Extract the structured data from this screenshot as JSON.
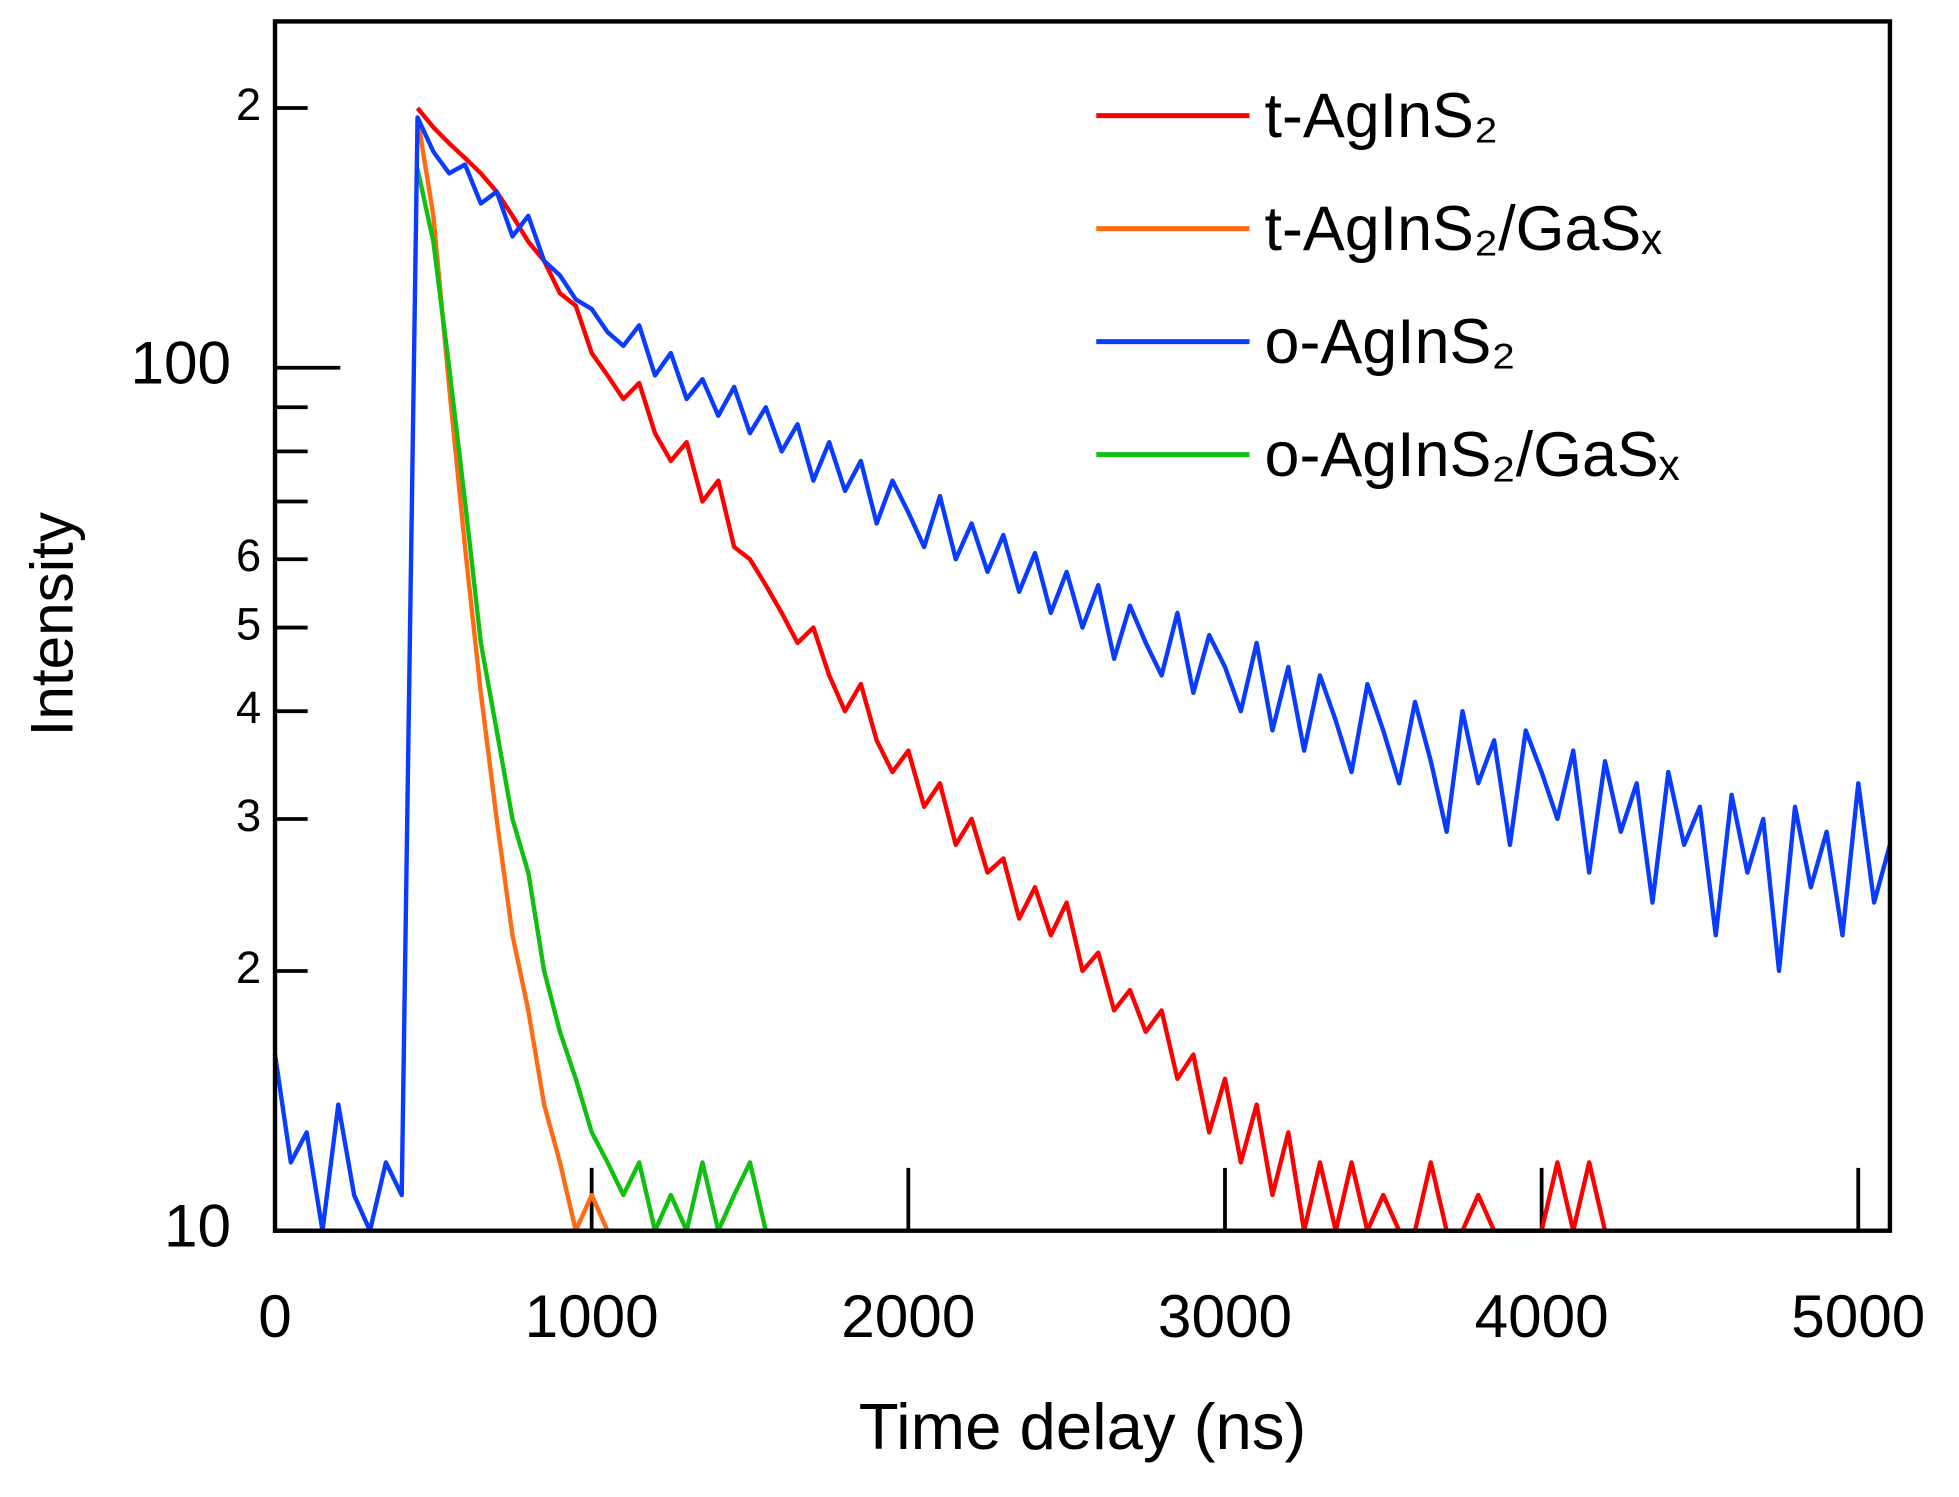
{
  "chart_data": {
    "type": "line",
    "xlabel": "Time delay (ns)",
    "ylabel": "Intensity",
    "xlim": [
      0,
      5100
    ],
    "xticks": [
      0,
      1000,
      2000,
      3000,
      4000,
      5000
    ],
    "ylim": [
      10,
      252
    ],
    "log_y": true,
    "yticks": [
      10,
      {
        "value": 20,
        "label": "2"
      },
      {
        "value": 30,
        "label": "3"
      },
      {
        "value": 40,
        "label": "4"
      },
      {
        "value": 50,
        "label": "5"
      },
      {
        "value": 60,
        "label": "6"
      },
      100,
      {
        "value": 200,
        "label": "2"
      }
    ],
    "yminor_ticks": [
      70,
      80,
      90
    ],
    "legend": "upper right",
    "x": [
      0,
      50,
      100,
      150,
      200,
      250,
      300,
      350,
      400,
      450,
      500,
      550,
      600,
      650,
      700,
      750,
      800,
      850,
      900,
      950,
      1000,
      1050,
      1100,
      1150,
      1200,
      1250,
      1300,
      1350,
      1400,
      1450,
      1500,
      1550,
      1600,
      1650,
      1700,
      1750,
      1800,
      1850,
      1900,
      1950,
      2000,
      2050,
      2100,
      2150,
      2200,
      2250,
      2300,
      2350,
      2400,
      2450,
      2500,
      2550,
      2600,
      2650,
      2700,
      2750,
      2800,
      2850,
      2900,
      2950,
      3000,
      3050,
      3100,
      3150,
      3200,
      3250,
      3300,
      3350,
      3400,
      3450,
      3500,
      3550,
      3600,
      3650,
      3700,
      3750,
      3800,
      3850,
      3900,
      3950,
      4000,
      4050,
      4100,
      4150,
      4200,
      4250,
      4300,
      4350,
      4400,
      4450,
      4500,
      4550,
      4600,
      4650,
      4700,
      4750,
      4800,
      4850,
      4900,
      4950,
      5000,
      5050,
      5100
    ],
    "series": [
      {
        "name": "t-AgInS₂",
        "color": "#ff0000",
        "values": [
          null,
          null,
          null,
          null,
          null,
          null,
          null,
          null,
          null,
          200,
          190,
          182,
          175,
          168,
          160,
          150,
          140,
          133,
          122,
          118,
          104,
          98,
          92,
          96,
          84,
          78,
          82,
          70,
          74,
          62,
          60,
          56,
          52,
          48,
          50,
          44,
          40,
          43,
          37,
          34,
          36,
          31,
          33,
          28,
          30,
          26,
          27,
          23,
          25,
          22,
          24,
          20,
          21,
          18,
          19,
          17,
          18,
          15,
          16,
          13,
          15,
          12,
          14,
          11,
          13,
          10,
          12,
          10,
          12,
          10,
          11,
          10,
          10,
          12,
          10,
          10,
          11,
          10,
          10,
          10,
          10,
          12,
          10,
          12,
          10,
          null,
          null,
          null,
          null,
          null,
          null,
          null,
          null,
          null,
          null,
          null,
          null,
          null,
          null,
          null,
          null,
          null,
          null
        ]
      },
      {
        "name": "t-AgInS₂/GaSₓ",
        "color": "#ff6a13",
        "values": [
          null,
          null,
          null,
          null,
          null,
          null,
          null,
          null,
          null,
          195,
          150,
          95,
          62,
          42,
          30,
          22,
          18,
          14,
          12,
          10,
          11,
          10,
          null,
          null,
          null,
          null,
          null,
          null,
          null,
          null,
          null,
          null,
          null,
          null,
          null,
          null,
          null,
          null,
          null,
          null,
          null,
          null,
          null,
          null,
          null,
          null,
          null,
          null,
          null,
          null,
          null,
          null,
          null,
          null,
          null,
          null,
          null,
          null,
          null,
          null,
          null,
          null,
          null,
          null,
          null,
          null,
          null,
          null,
          null,
          null,
          null,
          null,
          null,
          null,
          null,
          null,
          null,
          null,
          null,
          null,
          null,
          null,
          null,
          null,
          null,
          null,
          null,
          null,
          null,
          null,
          null,
          null,
          null,
          null,
          null,
          null,
          null,
          null,
          null,
          null,
          null,
          null,
          null
        ]
      },
      {
        "name": "o-AgInS₂",
        "color": "#0a3cff",
        "values": [
          16,
          12,
          13,
          10,
          14,
          11,
          10,
          12,
          11,
          195,
          178,
          168,
          172,
          155,
          160,
          142,
          150,
          133,
          128,
          120,
          117,
          110,
          106,
          112,
          98,
          104,
          92,
          97,
          88,
          95,
          84,
          90,
          80,
          86,
          74,
          82,
          72,
          78,
          66,
          74,
          68,
          62,
          71,
          60,
          66,
          58,
          64,
          55,
          61,
          52,
          58,
          50,
          56,
          46,
          53,
          48,
          44,
          52,
          42,
          49,
          45,
          40,
          48,
          38,
          45,
          36,
          44,
          39,
          34,
          43,
          38,
          33,
          41,
          35,
          29,
          40,
          33,
          37,
          28,
          38,
          34,
          30,
          36,
          26,
          35,
          29,
          33,
          24,
          34,
          28,
          31,
          22,
          32,
          26,
          30,
          20,
          31,
          25,
          29,
          22,
          33,
          24,
          28
        ]
      },
      {
        "name": "o-AgInS₂/GaSₓ",
        "color": "#10c010",
        "values": [
          null,
          null,
          null,
          null,
          null,
          null,
          null,
          null,
          null,
          170,
          140,
          100,
          70,
          48,
          38,
          30,
          26,
          20,
          17,
          15,
          13,
          12,
          11,
          12,
          10,
          11,
          10,
          12,
          10,
          11,
          12,
          10,
          null,
          null,
          null,
          null,
          null,
          null,
          null,
          null,
          null,
          null,
          null,
          null,
          null,
          null,
          null,
          null,
          null,
          null,
          null,
          null,
          null,
          null,
          null,
          null,
          null,
          null,
          null,
          null,
          null,
          null,
          null,
          null,
          null,
          null,
          null,
          null,
          null,
          null,
          null,
          null,
          null,
          null,
          null,
          null,
          null,
          null,
          null,
          null,
          null,
          null,
          null,
          null,
          null,
          null,
          null,
          null,
          null,
          null,
          null,
          null,
          null,
          null,
          null,
          null,
          null,
          null,
          null,
          null,
          null,
          null,
          null
        ]
      }
    ]
  }
}
